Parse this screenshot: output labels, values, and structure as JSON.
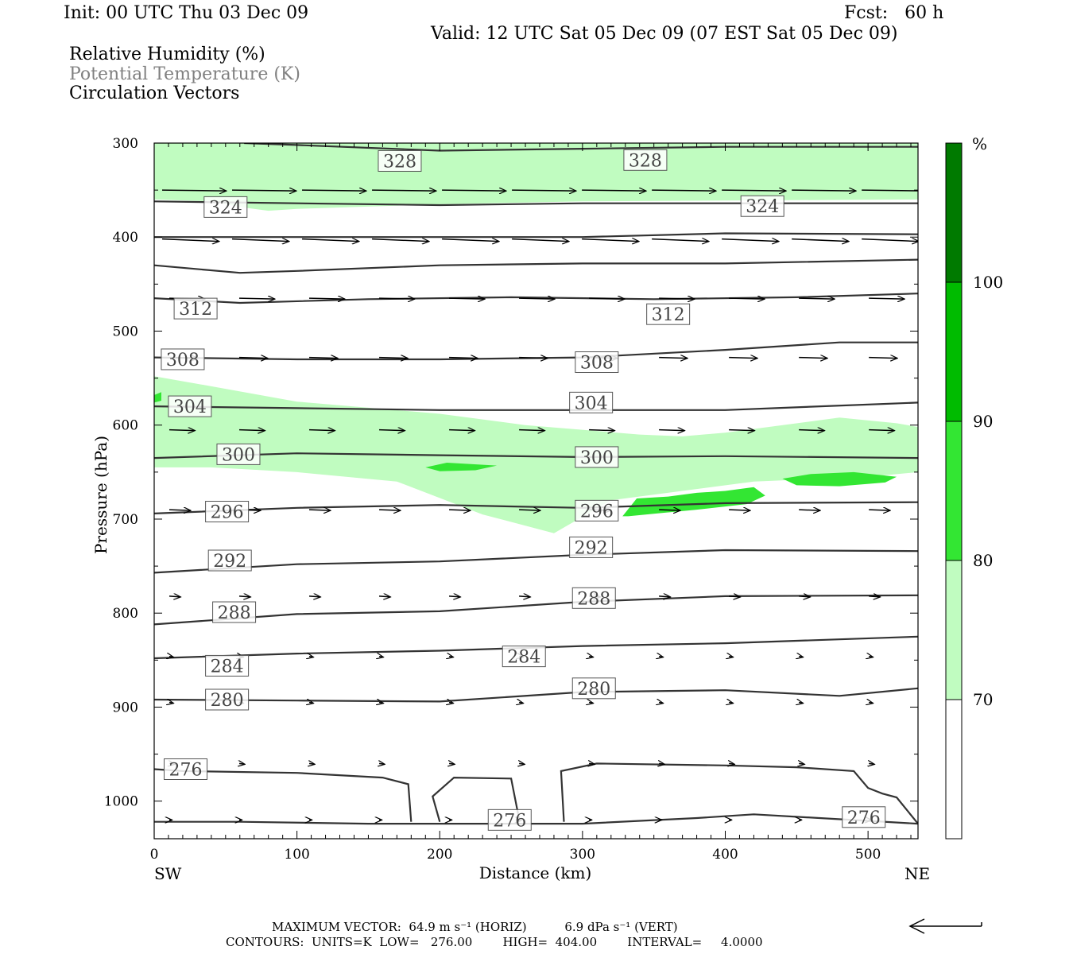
{
  "header": {
    "init": "Init: 00 UTC Thu 03 Dec 09",
    "fcst": "Fcst:   60 h",
    "valid": "Valid: 12 UTC Sat 05 Dec 09 (07 EST Sat 05 Dec 09)"
  },
  "fields": [
    {
      "label": "Relative Humidity (%)",
      "color": "#000000"
    },
    {
      "label": "Potential Temperature (K)",
      "color": "#808080"
    },
    {
      "label": "Circulation Vectors",
      "color": "#000000"
    }
  ],
  "chart_data": {
    "type": "cross-section",
    "x": {
      "label": "Distance (km)",
      "range": [
        0,
        535
      ],
      "ticks": [
        0,
        100,
        200,
        300,
        400,
        500
      ],
      "left_end": "SW",
      "right_end": "NE"
    },
    "y": {
      "label": "Pressure (hPa)",
      "range": [
        300,
        1040
      ],
      "inverted": true,
      "ticks": [
        300,
        400,
        500,
        600,
        700,
        800,
        900,
        1000
      ]
    },
    "colorbar": {
      "unit": "%",
      "levels": [
        70,
        80,
        90,
        100
      ],
      "colors": [
        "#ffffff",
        "#c0fcc0",
        "#33e633",
        "#00bb00",
        "#007a00"
      ]
    },
    "humidity_regions": [
      {
        "level": 70,
        "points": [
          [
            0,
            300
          ],
          [
            535,
            300
          ],
          [
            535,
            360
          ],
          [
            300,
            362
          ],
          [
            200,
            365
          ],
          [
            100,
            370
          ],
          [
            80,
            372
          ],
          [
            60,
            368
          ],
          [
            40,
            362
          ],
          [
            0,
            360
          ]
        ]
      },
      {
        "level": 70,
        "points": [
          [
            0,
            548
          ],
          [
            30,
            556
          ],
          [
            100,
            575
          ],
          [
            200,
            588
          ],
          [
            260,
            600
          ],
          [
            340,
            610
          ],
          [
            370,
            612
          ],
          [
            400,
            608
          ],
          [
            480,
            592
          ],
          [
            520,
            598
          ],
          [
            535,
            602
          ],
          [
            535,
            650
          ],
          [
            500,
            655
          ],
          [
            420,
            660
          ],
          [
            380,
            668
          ],
          [
            320,
            680
          ],
          [
            280,
            715
          ],
          [
            230,
            695
          ],
          [
            170,
            660
          ],
          [
            100,
            650
          ],
          [
            40,
            645
          ],
          [
            0,
            645
          ]
        ]
      },
      {
        "level": 80,
        "points": [
          [
            190,
            645
          ],
          [
            205,
            640
          ],
          [
            240,
            643
          ],
          [
            225,
            648
          ],
          [
            200,
            649
          ]
        ]
      },
      {
        "level": 80,
        "points": [
          [
            328,
            697
          ],
          [
            338,
            678
          ],
          [
            360,
            676
          ],
          [
            380,
            672
          ],
          [
            400,
            670
          ],
          [
            420,
            666
          ],
          [
            428,
            675
          ],
          [
            415,
            684
          ],
          [
            380,
            690
          ],
          [
            352,
            694
          ],
          [
            332,
            697
          ]
        ]
      },
      {
        "level": 80,
        "points": [
          [
            440,
            657
          ],
          [
            460,
            652
          ],
          [
            490,
            650
          ],
          [
            520,
            655
          ],
          [
            512,
            661
          ],
          [
            480,
            665
          ],
          [
            450,
            664
          ]
        ]
      },
      {
        "level": 80,
        "points": [
          [
            0,
            568
          ],
          [
            5,
            565
          ],
          [
            5,
            574
          ],
          [
            0,
            576
          ]
        ]
      }
    ],
    "theta_contours": [
      {
        "value": 328,
        "points": [
          [
            63,
            300
          ],
          [
            100,
            302
          ],
          [
            200,
            308
          ],
          [
            300,
            306
          ],
          [
            400,
            304
          ],
          [
            535,
            304
          ]
        ],
        "labels": [
          [
            172,
            319
          ],
          [
            344,
            318
          ]
        ]
      },
      {
        "value": 324,
        "points": [
          [
            0,
            362
          ],
          [
            100,
            364
          ],
          [
            200,
            366
          ],
          [
            300,
            364
          ],
          [
            400,
            364
          ],
          [
            535,
            364
          ]
        ],
        "labels": [
          [
            50,
            368
          ],
          [
            426,
            367
          ]
        ]
      },
      {
        "value": 320,
        "points": [
          [
            0,
            400
          ],
          [
            100,
            400
          ],
          [
            200,
            400
          ],
          [
            300,
            400
          ],
          [
            400,
            396
          ],
          [
            535,
            397
          ]
        ],
        "labels": []
      },
      {
        "value": 316,
        "points": [
          [
            0,
            430
          ],
          [
            60,
            438
          ],
          [
            100,
            436
          ],
          [
            200,
            430
          ],
          [
            300,
            428
          ],
          [
            400,
            428
          ],
          [
            535,
            424
          ]
        ],
        "labels": []
      },
      {
        "value": 312,
        "points": [
          [
            0,
            465
          ],
          [
            60,
            470
          ],
          [
            150,
            466
          ],
          [
            250,
            464
          ],
          [
            350,
            466
          ],
          [
            450,
            464
          ],
          [
            535,
            460
          ]
        ],
        "labels": [
          [
            29,
            476
          ],
          [
            360,
            482
          ]
        ]
      },
      {
        "value": 308,
        "points": [
          [
            0,
            528
          ],
          [
            100,
            530
          ],
          [
            200,
            530
          ],
          [
            300,
            528
          ],
          [
            400,
            520
          ],
          [
            480,
            512
          ],
          [
            535,
            512
          ]
        ],
        "labels": [
          [
            20,
            530
          ],
          [
            310,
            533
          ]
        ]
      },
      {
        "value": 304,
        "points": [
          [
            0,
            580
          ],
          [
            100,
            582
          ],
          [
            200,
            584
          ],
          [
            300,
            584
          ],
          [
            400,
            584
          ],
          [
            535,
            576
          ]
        ],
        "labels": [
          [
            25,
            580
          ],
          [
            306,
            576
          ]
        ]
      },
      {
        "value": 300,
        "points": [
          [
            0,
            635
          ],
          [
            100,
            630
          ],
          [
            200,
            632
          ],
          [
            300,
            634
          ],
          [
            400,
            633
          ],
          [
            535,
            635
          ]
        ],
        "labels": [
          [
            59,
            631
          ],
          [
            310,
            634
          ]
        ]
      },
      {
        "value": 296,
        "points": [
          [
            0,
            694
          ],
          [
            100,
            688
          ],
          [
            200,
            685
          ],
          [
            300,
            688
          ],
          [
            400,
            683
          ],
          [
            535,
            682
          ]
        ],
        "labels": [
          [
            51,
            692
          ],
          [
            310,
            691
          ]
        ]
      },
      {
        "value": 292,
        "points": [
          [
            0,
            757
          ],
          [
            100,
            748
          ],
          [
            200,
            745
          ],
          [
            300,
            738
          ],
          [
            400,
            733
          ],
          [
            535,
            734
          ]
        ],
        "labels": [
          [
            53,
            744
          ],
          [
            306,
            730
          ]
        ]
      },
      {
        "value": 288,
        "points": [
          [
            0,
            812
          ],
          [
            100,
            801
          ],
          [
            200,
            798
          ],
          [
            300,
            788
          ],
          [
            400,
            782
          ],
          [
            535,
            781
          ]
        ],
        "labels": [
          [
            56,
            799
          ],
          [
            308,
            784
          ]
        ]
      },
      {
        "value": 284,
        "points": [
          [
            0,
            848
          ],
          [
            100,
            843
          ],
          [
            200,
            840
          ],
          [
            300,
            835
          ],
          [
            400,
            832
          ],
          [
            535,
            825
          ]
        ],
        "labels": [
          [
            51,
            856
          ],
          [
            259,
            846
          ]
        ]
      },
      {
        "value": 280,
        "points": [
          [
            0,
            892
          ],
          [
            100,
            893
          ],
          [
            200,
            894
          ],
          [
            300,
            884
          ],
          [
            400,
            882
          ],
          [
            480,
            888
          ],
          [
            535,
            880
          ]
        ],
        "labels": [
          [
            51,
            892
          ],
          [
            308,
            880
          ]
        ]
      },
      {
        "value": 276,
        "points": [
          [
            0,
            1022
          ],
          [
            60,
            1022
          ],
          [
            150,
            1024
          ],
          [
            200,
            1024
          ],
          [
            250,
            1024
          ],
          [
            300,
            1024
          ],
          [
            380,
            1018
          ],
          [
            420,
            1014
          ],
          [
            535,
            1024
          ]
        ],
        "labels": [
          [
            22,
            966
          ],
          [
            249,
            1020
          ],
          [
            497,
            1017
          ]
        ]
      },
      {
        "value": 276,
        "points": [
          [
            0,
            966
          ],
          [
            20,
            968
          ],
          [
            100,
            970
          ],
          [
            160,
            975
          ],
          [
            178,
            982
          ],
          [
            180,
            1022
          ]
        ],
        "labels": []
      },
      {
        "value": 276,
        "points": [
          [
            200,
            1022
          ],
          [
            195,
            995
          ],
          [
            210,
            975
          ],
          [
            250,
            976
          ],
          [
            256,
            1022
          ]
        ],
        "labels": []
      },
      {
        "value": 276,
        "points": [
          [
            287,
            1022
          ],
          [
            285,
            968
          ],
          [
            310,
            960
          ],
          [
            400,
            962
          ],
          [
            450,
            964
          ],
          [
            490,
            968
          ],
          [
            500,
            986
          ],
          [
            510,
            992
          ],
          [
            520,
            996
          ],
          [
            535,
            1024
          ]
        ],
        "labels": []
      }
    ],
    "vector_rows": [
      {
        "p": 350,
        "x0": 0,
        "count": 11,
        "step": 49,
        "dx": 45,
        "dy": 1
      },
      {
        "p": 402,
        "x0": 0,
        "count": 11,
        "step": 49,
        "dx": 40,
        "dy": 3
      },
      {
        "p": 465,
        "x0": 5,
        "count": 11,
        "step": 49,
        "dx": 25,
        "dy": 1
      },
      {
        "p": 528,
        "x0": 5,
        "count": 11,
        "step": 49,
        "dx": 20,
        "dy": 1
      },
      {
        "p": 605,
        "x0": 5,
        "count": 11,
        "step": 49,
        "dx": 18,
        "dy": 1
      },
      {
        "p": 690,
        "x0": 5,
        "count": 11,
        "step": 49,
        "dx": 15,
        "dy": 1
      },
      {
        "p": 782,
        "x0": 5,
        "count": 11,
        "step": 49,
        "dx": 8,
        "dy": 1
      },
      {
        "p": 846,
        "x0": 5,
        "count": 11,
        "step": 49,
        "dx": 3,
        "dy": 1
      },
      {
        "p": 895,
        "x0": 5,
        "count": 11,
        "step": 49,
        "dx": 3,
        "dy": 1
      },
      {
        "p": 960,
        "x0": 5,
        "count": 11,
        "step": 49,
        "dx": 4,
        "dy": 1
      },
      {
        "p": 1020,
        "x0": 5,
        "count": 11,
        "step": 49,
        "dx": 2,
        "dy": 0
      }
    ]
  },
  "footer": {
    "max_vector": "MAXIMUM VECTOR:  64.9 m s⁻¹ (HORIZ)          6.9 dPa s⁻¹ (VERT)",
    "contours": "CONTOURS:  UNITS=K  LOW=   276.00        HIGH=  404.00        INTERVAL=     4.0000"
  }
}
